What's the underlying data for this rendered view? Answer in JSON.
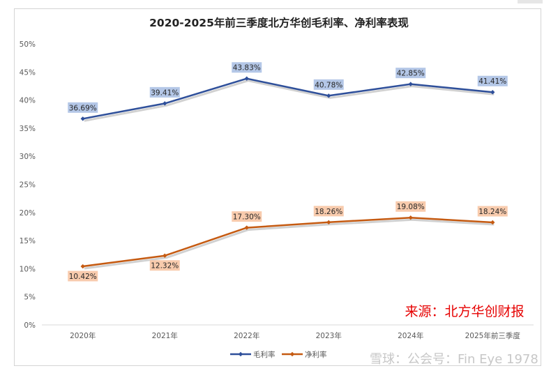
{
  "chart_data": {
    "type": "line",
    "title": "2020-2025年前三季度北方华创毛利率、净利率表现",
    "categories": [
      "2020年",
      "2021年",
      "2022年",
      "2023年",
      "2024年",
      "2025年前三季度"
    ],
    "yticks": [
      "0%",
      "5%",
      "10%",
      "15%",
      "20%",
      "25%",
      "30%",
      "35%",
      "40%",
      "45%",
      "50%"
    ],
    "ylim": [
      0,
      50
    ],
    "series": [
      {
        "name": "毛利率",
        "color": "#2E4F9A",
        "label_bg": "#B4C7E7",
        "values": [
          36.69,
          39.41,
          43.83,
          40.78,
          42.85,
          41.41
        ],
        "labels": [
          "36.69%",
          "39.41%",
          "43.83%",
          "40.78%",
          "42.85%",
          "41.41%"
        ]
      },
      {
        "name": "净利率",
        "color": "#C55A11",
        "label_bg": "#F8CBAD",
        "values": [
          10.42,
          12.32,
          17.3,
          18.26,
          19.08,
          18.24
        ],
        "labels": [
          "10.42%",
          "12.32%",
          "17.30%",
          "18.26%",
          "19.08%",
          "18.24%"
        ]
      }
    ],
    "source_note": "来源：北方华创财报",
    "source_color": "#E60000",
    "watermark": "雪球：公会号：Fin Eye 1978"
  }
}
